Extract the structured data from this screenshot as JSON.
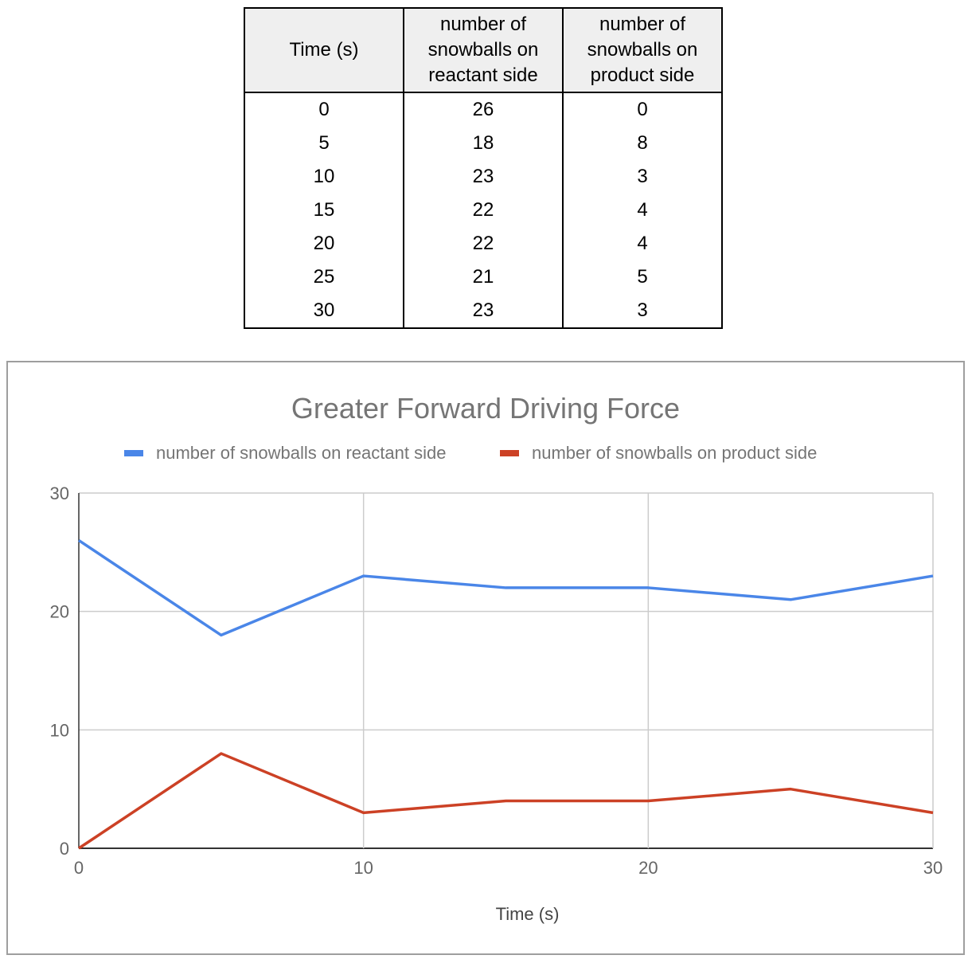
{
  "table": {
    "headers": [
      "Time (s)",
      "number of snowballs on reactant side",
      "number of snowballs on product side"
    ],
    "rows": [
      [
        "0",
        "26",
        "0"
      ],
      [
        "5",
        "18",
        "8"
      ],
      [
        "10",
        "23",
        "3"
      ],
      [
        "15",
        "22",
        "4"
      ],
      [
        "20",
        "22",
        "4"
      ],
      [
        "25",
        "21",
        "5"
      ],
      [
        "30",
        "23",
        "3"
      ]
    ]
  },
  "chart_data": {
    "type": "line",
    "title": "Greater Forward Driving Force",
    "xlabel": "Time (s)",
    "ylabel": "",
    "x": [
      0,
      5,
      10,
      15,
      20,
      25,
      30
    ],
    "xlim": [
      0,
      30
    ],
    "ylim": [
      0,
      30
    ],
    "xticks": [
      0,
      10,
      20,
      30
    ],
    "yticks": [
      0,
      10,
      20,
      30
    ],
    "grid": true,
    "legend_position": "top",
    "series": [
      {
        "name": "number of snowballs on reactant side",
        "values": [
          26,
          18,
          23,
          22,
          22,
          21,
          23
        ],
        "color": "#4a86e8"
      },
      {
        "name": "number of snowballs on product side",
        "values": [
          0,
          8,
          3,
          4,
          4,
          5,
          3
        ],
        "color": "#cc4125"
      }
    ]
  }
}
